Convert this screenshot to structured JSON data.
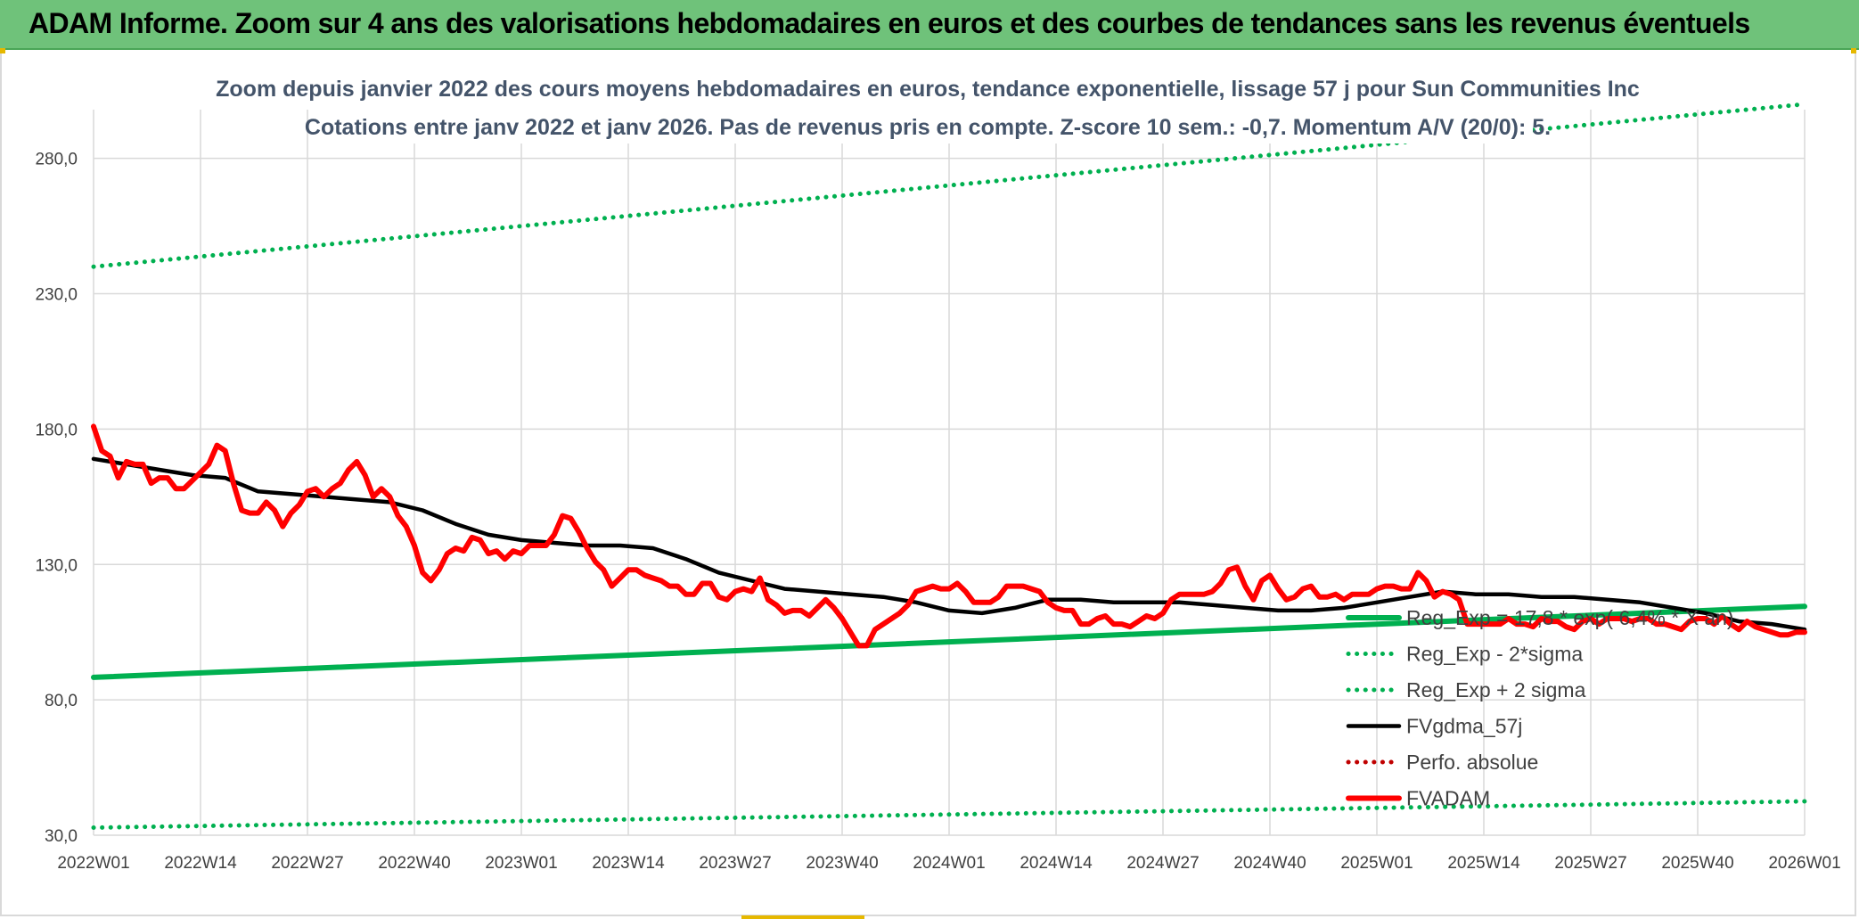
{
  "header": {
    "title": "ADAM Informe. Zoom sur 4 ans des valorisations hebdomadaires en euros et des courbes de tendances sans les revenus éventuels"
  },
  "colors": {
    "header_bg": "#6fc27a",
    "trend": "#00b050",
    "price": "#ff0000",
    "smooth": "#000000",
    "perf": "#c00000",
    "grid": "#d9d9d9"
  },
  "chart_data": {
    "type": "line",
    "title_line1": "Zoom depuis janvier 2022 des cours moyens hebdomadaires en euros, tendance exponentielle, lissage 57 j pour Sun Communities Inc",
    "title_line2": "Cotations entre janv 2022 et janv 2026. Pas de revenus pris en compte. Z-score 10 sem.: -0,7. Momentum A/V (20/0): 5.",
    "x_tick_labels": [
      "2022W01",
      "2022W14",
      "2022W27",
      "2022W40",
      "2023W01",
      "2023W14",
      "2023W27",
      "2023W40",
      "2024W01",
      "2024W14",
      "2024W27",
      "2024W40",
      "2025W01",
      "2025W14",
      "2025W27",
      "2025W40",
      "2026W01"
    ],
    "y_tick_labels": [
      "30,0",
      "80,0",
      "130,0",
      "180,0",
      "230,0",
      "280,0"
    ],
    "y_ticks": [
      30,
      80,
      130,
      180,
      230,
      280
    ],
    "ylim": [
      30,
      298
    ],
    "x_range_weeks": [
      0,
      208
    ],
    "grid": true,
    "legend_position": "bottom-right",
    "series": [
      {
        "name": "Reg_Exp = 17,8 * exp( 6,4% * X an)",
        "style": "solid-thick",
        "color": "#00b050",
        "points": [
          [
            0,
            88.3
          ],
          [
            208,
            114.5
          ]
        ]
      },
      {
        "name": "Reg_Exp - 2*sigma",
        "style": "dotted",
        "color": "#00b050",
        "points": [
          [
            0,
            32.8
          ],
          [
            208,
            42.5
          ]
        ]
      },
      {
        "name": "Reg_Exp + 2 sigma",
        "style": "dotted",
        "color": "#00b050",
        "points": [
          [
            0,
            240
          ],
          [
            208,
            300
          ]
        ]
      },
      {
        "name": "FVgdma_57j",
        "style": "solid",
        "color": "#000000",
        "points": [
          [
            0,
            169
          ],
          [
            4,
            167
          ],
          [
            8,
            165
          ],
          [
            12,
            163
          ],
          [
            16,
            162
          ],
          [
            20,
            157
          ],
          [
            24,
            156
          ],
          [
            28,
            155
          ],
          [
            32,
            154
          ],
          [
            36,
            153
          ],
          [
            40,
            150
          ],
          [
            44,
            145
          ],
          [
            48,
            141
          ],
          [
            52,
            139
          ],
          [
            56,
            138
          ],
          [
            60,
            137
          ],
          [
            64,
            137
          ],
          [
            68,
            136
          ],
          [
            72,
            132
          ],
          [
            76,
            127
          ],
          [
            80,
            124
          ],
          [
            84,
            121
          ],
          [
            88,
            120
          ],
          [
            92,
            119
          ],
          [
            96,
            118
          ],
          [
            100,
            116
          ],
          [
            104,
            113
          ],
          [
            108,
            112
          ],
          [
            112,
            114
          ],
          [
            116,
            117
          ],
          [
            120,
            117
          ],
          [
            124,
            116
          ],
          [
            128,
            116
          ],
          [
            132,
            116
          ],
          [
            136,
            115
          ],
          [
            140,
            114
          ],
          [
            144,
            113
          ],
          [
            148,
            113
          ],
          [
            152,
            114
          ],
          [
            156,
            116
          ],
          [
            160,
            118
          ],
          [
            164,
            120
          ],
          [
            168,
            119
          ],
          [
            172,
            119
          ],
          [
            176,
            118
          ],
          [
            180,
            118
          ],
          [
            184,
            117
          ],
          [
            188,
            116
          ],
          [
            192,
            114
          ],
          [
            196,
            112
          ],
          [
            200,
            109
          ],
          [
            204,
            108
          ],
          [
            208,
            106
          ]
        ]
      },
      {
        "name": "Perfo. absolue",
        "style": "dotted",
        "color": "#c00000",
        "points": []
      },
      {
        "name": "FVADAM",
        "style": "solid-thick",
        "color": "#ff0000",
        "points": [
          [
            0,
            181
          ],
          [
            1,
            172
          ],
          [
            2,
            170
          ],
          [
            3,
            162
          ],
          [
            4,
            168
          ],
          [
            5,
            167
          ],
          [
            6,
            167
          ],
          [
            7,
            160
          ],
          [
            8,
            162
          ],
          [
            9,
            162
          ],
          [
            10,
            158
          ],
          [
            11,
            158
          ],
          [
            12,
            161
          ],
          [
            13,
            164
          ],
          [
            14,
            167
          ],
          [
            15,
            174
          ],
          [
            16,
            172
          ],
          [
            17,
            160
          ],
          [
            18,
            150
          ],
          [
            19,
            149
          ],
          [
            20,
            149
          ],
          [
            21,
            153
          ],
          [
            22,
            150
          ],
          [
            23,
            144
          ],
          [
            24,
            149
          ],
          [
            25,
            152
          ],
          [
            26,
            157
          ],
          [
            27,
            158
          ],
          [
            28,
            155
          ],
          [
            29,
            158
          ],
          [
            30,
            160
          ],
          [
            31,
            165
          ],
          [
            32,
            168
          ],
          [
            33,
            163
          ],
          [
            34,
            155
          ],
          [
            35,
            158
          ],
          [
            36,
            155
          ],
          [
            37,
            148
          ],
          [
            38,
            144
          ],
          [
            39,
            137
          ],
          [
            40,
            127
          ],
          [
            41,
            124
          ],
          [
            42,
            128
          ],
          [
            43,
            134
          ],
          [
            44,
            136
          ],
          [
            45,
            135
          ],
          [
            46,
            140
          ],
          [
            47,
            139
          ],
          [
            48,
            134
          ],
          [
            49,
            135
          ],
          [
            50,
            132
          ],
          [
            51,
            135
          ],
          [
            52,
            134
          ],
          [
            53,
            137
          ],
          [
            54,
            137
          ],
          [
            55,
            137
          ],
          [
            56,
            141
          ],
          [
            57,
            148
          ],
          [
            58,
            147
          ],
          [
            59,
            142
          ],
          [
            60,
            136
          ],
          [
            61,
            131
          ],
          [
            62,
            128
          ],
          [
            63,
            122
          ],
          [
            64,
            125
          ],
          [
            65,
            128
          ],
          [
            66,
            128
          ],
          [
            67,
            126
          ],
          [
            68,
            125
          ],
          [
            69,
            124
          ],
          [
            70,
            122
          ],
          [
            71,
            122
          ],
          [
            72,
            119
          ],
          [
            73,
            119
          ],
          [
            74,
            123
          ],
          [
            75,
            123
          ],
          [
            76,
            118
          ],
          [
            77,
            117
          ],
          [
            78,
            120
          ],
          [
            79,
            121
          ],
          [
            80,
            120
          ],
          [
            81,
            125
          ],
          [
            82,
            117
          ],
          [
            83,
            115
          ],
          [
            84,
            112
          ],
          [
            85,
            113
          ],
          [
            86,
            113
          ],
          [
            87,
            111
          ],
          [
            88,
            114
          ],
          [
            89,
            117
          ],
          [
            90,
            114
          ],
          [
            91,
            110
          ],
          [
            92,
            105
          ],
          [
            93,
            100
          ],
          [
            94,
            100
          ],
          [
            95,
            106
          ],
          [
            96,
            108
          ],
          [
            97,
            110
          ],
          [
            98,
            112
          ],
          [
            99,
            115
          ],
          [
            100,
            120
          ],
          [
            101,
            121
          ],
          [
            102,
            122
          ],
          [
            103,
            121
          ],
          [
            104,
            121
          ],
          [
            105,
            123
          ],
          [
            106,
            120
          ],
          [
            107,
            116
          ],
          [
            108,
            116
          ],
          [
            109,
            116
          ],
          [
            110,
            118
          ],
          [
            111,
            122
          ],
          [
            112,
            122
          ],
          [
            113,
            122
          ],
          [
            114,
            121
          ],
          [
            115,
            120
          ],
          [
            116,
            116
          ],
          [
            117,
            114
          ],
          [
            118,
            113
          ],
          [
            119,
            113
          ],
          [
            120,
            108
          ],
          [
            121,
            108
          ],
          [
            122,
            110
          ],
          [
            123,
            111
          ],
          [
            124,
            108
          ],
          [
            125,
            108
          ],
          [
            126,
            107
          ],
          [
            127,
            109
          ],
          [
            128,
            111
          ],
          [
            129,
            110
          ],
          [
            130,
            112
          ],
          [
            131,
            117
          ],
          [
            132,
            119
          ],
          [
            133,
            119
          ],
          [
            134,
            119
          ],
          [
            135,
            119
          ],
          [
            136,
            120
          ],
          [
            137,
            123
          ],
          [
            138,
            128
          ],
          [
            139,
            129
          ],
          [
            140,
            122
          ],
          [
            141,
            117
          ],
          [
            142,
            124
          ],
          [
            143,
            126
          ],
          [
            144,
            121
          ],
          [
            145,
            117
          ],
          [
            146,
            118
          ],
          [
            147,
            121
          ],
          [
            148,
            122
          ],
          [
            149,
            118
          ],
          [
            150,
            118
          ],
          [
            151,
            119
          ],
          [
            152,
            117
          ],
          [
            153,
            119
          ],
          [
            154,
            119
          ],
          [
            155,
            119
          ],
          [
            156,
            121
          ],
          [
            157,
            122
          ],
          [
            158,
            122
          ],
          [
            159,
            121
          ],
          [
            160,
            121
          ],
          [
            161,
            127
          ],
          [
            162,
            124
          ],
          [
            163,
            118
          ],
          [
            164,
            120
          ],
          [
            165,
            119
          ],
          [
            166,
            117
          ],
          [
            167,
            108
          ],
          [
            168,
            108
          ],
          [
            169,
            108
          ],
          [
            170,
            108
          ],
          [
            171,
            108
          ],
          [
            172,
            110
          ],
          [
            173,
            108
          ],
          [
            174,
            108
          ],
          [
            175,
            107
          ],
          [
            176,
            110
          ],
          [
            177,
            109
          ],
          [
            178,
            109
          ],
          [
            179,
            107
          ],
          [
            180,
            106
          ],
          [
            181,
            109
          ],
          [
            182,
            110
          ],
          [
            183,
            108
          ],
          [
            184,
            110
          ],
          [
            185,
            110
          ],
          [
            186,
            110
          ],
          [
            187,
            109
          ],
          [
            188,
            110
          ],
          [
            189,
            110
          ],
          [
            190,
            108
          ],
          [
            191,
            108
          ],
          [
            192,
            107
          ],
          [
            193,
            106
          ],
          [
            194,
            109
          ],
          [
            195,
            110
          ],
          [
            196,
            110
          ],
          [
            197,
            108
          ],
          [
            198,
            111
          ],
          [
            199,
            108
          ],
          [
            200,
            106
          ],
          [
            201,
            109
          ],
          [
            202,
            107
          ],
          [
            203,
            106
          ],
          [
            204,
            105
          ],
          [
            205,
            104
          ],
          [
            206,
            104
          ],
          [
            207,
            105
          ],
          [
            208,
            105
          ]
        ]
      }
    ]
  }
}
